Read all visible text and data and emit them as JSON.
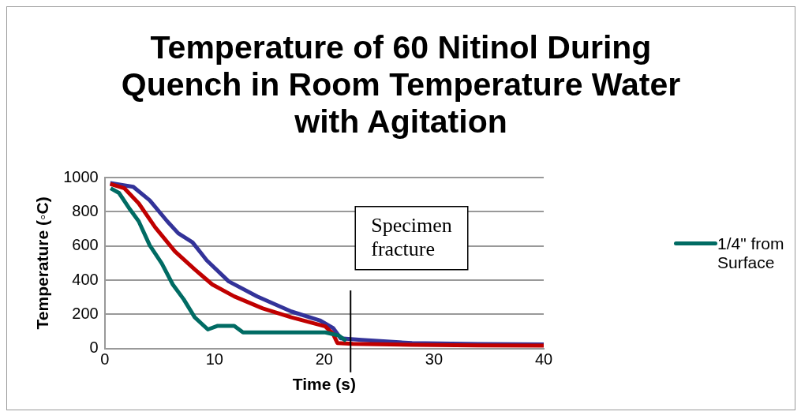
{
  "chart_data": {
    "type": "line",
    "title": "Temperature of 60 Nitinol During Quench in Room Temperature Water with Agitation",
    "xlabel": "Time (s)",
    "ylabel": "Temperature (◦C)",
    "xlim": [
      0,
      40
    ],
    "xticks": [
      0,
      10,
      20,
      30,
      40
    ],
    "ylim": [
      0,
      1000
    ],
    "yticks": [
      0,
      200,
      400,
      600,
      800,
      1000
    ],
    "grid": "y",
    "legend": "right",
    "marker": "none",
    "line_style": "solid",
    "series": [
      {
        "color": "#333399",
        "x": [
          0.5,
          2.6,
          4.1,
          5.7,
          6.7,
          8.0,
          9.3,
          11.3,
          13.9,
          17.0,
          19.6,
          20.8,
          21.5,
          23.4,
          28,
          34,
          40
        ],
        "values": [
          968,
          946,
          867,
          744,
          674,
          621,
          516,
          393,
          305,
          217,
          165,
          121,
          60,
          51,
          32,
          27,
          25
        ]
      },
      {
        "color": "#c00000",
        "x": [
          0.5,
          1.8,
          3.1,
          4.6,
          6.4,
          8.2,
          9.8,
          11.8,
          14.4,
          17.0,
          20.1,
          20.8,
          21.2,
          22.6,
          28,
          34,
          40
        ],
        "values": [
          963,
          937,
          849,
          709,
          568,
          463,
          375,
          305,
          235,
          183,
          130,
          86,
          33,
          28,
          22,
          19,
          18
        ]
      },
      {
        "name": "1/4\" from Surface",
        "color": "#006b63",
        "x": [
          0.54,
          1.3,
          2.3,
          3.1,
          4.1,
          5.2,
          6.2,
          7.2,
          8.2,
          9.4,
          10.3,
          11.8,
          12.6,
          20.1,
          21.3,
          22.0
        ],
        "values": [
          937,
          910,
          814,
          744,
          604,
          498,
          375,
          288,
          183,
          112,
          133,
          133,
          95,
          95,
          77,
          45
        ]
      }
    ],
    "ref_lines": [
      {
        "axis": "x",
        "value": 22.4,
        "label": "Specimen fracture",
        "color": "#000000"
      }
    ]
  }
}
